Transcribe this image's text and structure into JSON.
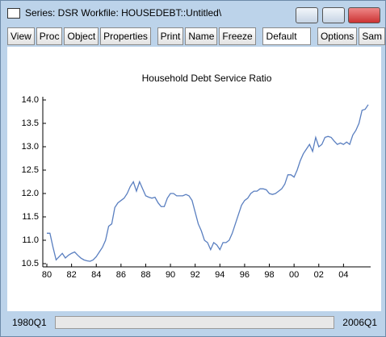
{
  "window": {
    "title": "Series: DSR   Workfile: HOUSEDEBT::Untitled\\"
  },
  "toolbar": {
    "buttons": [
      "View",
      "Proc",
      "Object",
      "Properties",
      "Print",
      "Name",
      "Freeze"
    ],
    "dropdown": "Default",
    "buttons_right": [
      "Options",
      "Sam"
    ]
  },
  "footer": {
    "start": "1980Q1",
    "end": "2006Q1"
  },
  "chart_data": {
    "type": "line",
    "title": "Household Debt Service Ratio",
    "categories": [
      "80",
      null,
      null,
      null,
      null,
      null,
      null,
      null,
      "82",
      null,
      null,
      null,
      null,
      null,
      null,
      null,
      "84",
      null,
      null,
      null,
      null,
      null,
      null,
      null,
      "86",
      null,
      null,
      null,
      null,
      null,
      null,
      null,
      "88",
      null,
      null,
      null,
      null,
      null,
      null,
      null,
      "90",
      null,
      null,
      null,
      null,
      null,
      null,
      null,
      "92",
      null,
      null,
      null,
      null,
      null,
      null,
      null,
      "94",
      null,
      null,
      null,
      null,
      null,
      null,
      null,
      "96",
      null,
      null,
      null,
      null,
      null,
      null,
      null,
      "98",
      null,
      null,
      null,
      null,
      null,
      null,
      null,
      "00",
      null,
      null,
      null,
      null,
      null,
      null,
      null,
      "02",
      null,
      null,
      null,
      null,
      null,
      null,
      null,
      "04",
      null,
      null,
      null,
      null,
      null,
      null,
      null,
      null
    ],
    "values": [
      11.15,
      11.15,
      10.85,
      10.58,
      10.65,
      10.72,
      10.62,
      10.68,
      10.72,
      10.75,
      10.68,
      10.62,
      10.58,
      10.56,
      10.55,
      10.58,
      10.65,
      10.75,
      10.85,
      11.0,
      11.3,
      11.35,
      11.7,
      11.8,
      11.85,
      11.9,
      12.0,
      12.15,
      12.25,
      12.05,
      12.25,
      12.1,
      11.95,
      11.92,
      11.9,
      11.92,
      11.8,
      11.72,
      11.72,
      11.9,
      12.0,
      12.0,
      11.95,
      11.95,
      11.95,
      11.98,
      11.95,
      11.85,
      11.6,
      11.35,
      11.2,
      11.0,
      10.95,
      10.8,
      10.95,
      10.9,
      10.8,
      10.95,
      10.95,
      11.0,
      11.15,
      11.35,
      11.55,
      11.75,
      11.85,
      11.9,
      12.0,
      12.05,
      12.05,
      12.1,
      12.1,
      12.08,
      12.0,
      11.98,
      12.0,
      12.05,
      12.1,
      12.2,
      12.4,
      12.4,
      12.35,
      12.5,
      12.7,
      12.85,
      12.95,
      13.05,
      12.9,
      13.2,
      13.0,
      13.05,
      13.2,
      13.22,
      13.2,
      13.12,
      13.05,
      13.08,
      13.05,
      13.1,
      13.05,
      13.25,
      13.35,
      13.5,
      13.78,
      13.8,
      13.9
    ],
    "color": "#5a7fc0",
    "ylim": [
      10.5,
      14.0
    ],
    "yticks": [
      {
        "value": 10.5,
        "label": "10.5"
      },
      {
        "value": 11,
        "label": "11.0"
      },
      {
        "value": 11.5,
        "label": "11.5"
      },
      {
        "value": 12,
        "label": "12.0"
      },
      {
        "value": 12.5,
        "label": "12.5"
      },
      {
        "value": 13,
        "label": "13.0"
      },
      {
        "value": 13.5,
        "label": "13.5"
      },
      {
        "value": 14,
        "label": "14.0"
      }
    ]
  }
}
